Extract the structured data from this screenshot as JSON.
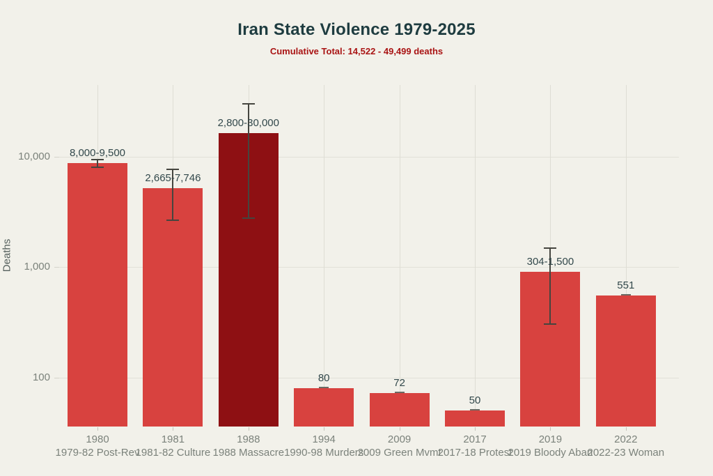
{
  "page": {
    "background": "#f2f1ea",
    "title_color": "#1e3c40",
    "subtitle_color": "#a91414"
  },
  "header": {
    "title": "Iran State Violence 1979-2025",
    "subtitle": "Cumulative Total: 14,522 - 49,499 deaths"
  },
  "chart_data": {
    "type": "bar",
    "title": "Iran State Violence 1979-2025",
    "subtitle": "Cumulative Total: 14,522 - 49,499 deaths",
    "xlabel": "",
    "ylabel": "Deaths",
    "yscale": "log",
    "ylim": [
      36,
      46000
    ],
    "grid": true,
    "legend": "none",
    "bar_color": "#d8423f",
    "highlight_color": "#8e1013",
    "error_color": "#45453f",
    "yticks": [
      {
        "value": 10000,
        "label": "10,000"
      },
      {
        "value": 1000,
        "label": "1,000"
      },
      {
        "value": 100,
        "label": "100"
      }
    ],
    "bars": [
      {
        "year": "1980",
        "event": "1979-82 Post-Rev",
        "value": 8750,
        "low": 8000,
        "high": 9500,
        "value_label": "8,000-9,500",
        "highlight": false
      },
      {
        "year": "1981",
        "event": "1981-82 Culture",
        "value": 5205,
        "low": 2665,
        "high": 7746,
        "value_label": "2,665-7,746",
        "highlight": false
      },
      {
        "year": "1988",
        "event": "1988 Massacre",
        "value": 16400,
        "low": 2800,
        "high": 30000,
        "value_label": "2,800-30,000",
        "highlight": true
      },
      {
        "year": "1994",
        "event": "1990-98 Murders",
        "value": 80,
        "low": 80,
        "high": 80,
        "value_label": "80",
        "highlight": false
      },
      {
        "year": "2009",
        "event": "2009 Green Mvmt",
        "value": 72,
        "low": 72,
        "high": 72,
        "value_label": "72",
        "highlight": false
      },
      {
        "year": "2017",
        "event": "2017-18 Protest",
        "value": 50,
        "low": 50,
        "high": 50,
        "value_label": "50",
        "highlight": false
      },
      {
        "year": "2019",
        "event": "2019 Bloody Aban",
        "value": 902,
        "low": 304,
        "high": 1500,
        "value_label": "304-1,500",
        "highlight": false
      },
      {
        "year": "2022",
        "event": "2022-23 Woman",
        "value": 551,
        "low": 551,
        "high": 551,
        "value_label": "551",
        "highlight": false
      }
    ]
  }
}
